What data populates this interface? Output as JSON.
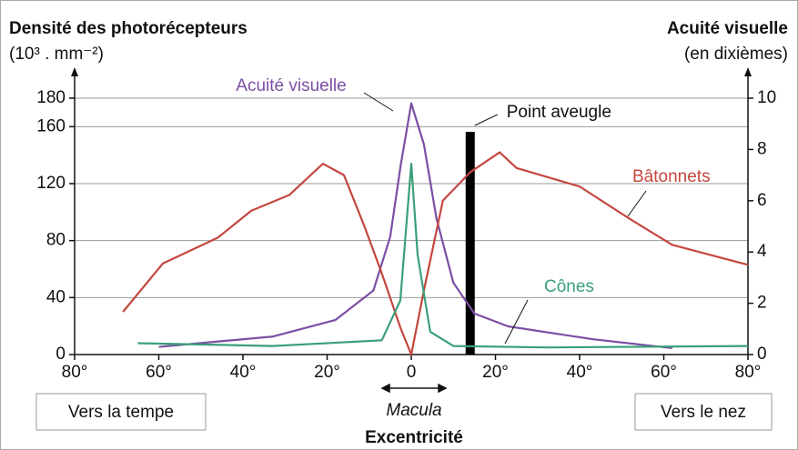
{
  "chart_data": {
    "type": "line",
    "y_title": "Densité des photorécepteurs",
    "y_unit": "(10³ . mm⁻²)",
    "y2_title": "Acuité visuelle",
    "y2_unit": "(en dixièmes)",
    "x_title": "Excentricité",
    "macula": "Macula",
    "left_note": "Vers la tempe",
    "right_note": "Vers le nez",
    "blind_spot": {
      "label": "Point aveugle",
      "x": 14
    },
    "xlim": [
      -80,
      80
    ],
    "xticks": [
      {
        "value": -80,
        "label": "80°"
      },
      {
        "value": -60,
        "label": "60°"
      },
      {
        "value": -40,
        "label": "40°"
      },
      {
        "value": -20,
        "label": "20°"
      },
      0,
      {
        "value": 20,
        "label": "20°"
      },
      {
        "value": 40,
        "label": "40°"
      },
      {
        "value": 60,
        "label": "60°"
      },
      {
        "value": 80,
        "label": "80°"
      }
    ],
    "ylim": [
      0,
      180
    ],
    "yticks": [
      0,
      40,
      80,
      120,
      160,
      180
    ],
    "y2lim": [
      0,
      10
    ],
    "y2ticks": [
      0,
      2,
      4,
      6,
      8,
      10
    ],
    "grid": true,
    "series": [
      {
        "name": "Acuité visuelle",
        "color": "#7b4fa3",
        "axis": "y2",
        "x": [
          -60,
          -33,
          -18,
          -9,
          -5,
          -2.5,
          0,
          3,
          6,
          10,
          15,
          23,
          43,
          62
        ],
        "values": [
          0.3,
          0.7,
          1.35,
          2.5,
          4.6,
          7.4,
          9.8,
          8.2,
          5.3,
          2.8,
          1.6,
          1.1,
          0.6,
          0.25
        ]
      },
      {
        "name": "Bâtonnets",
        "color": "#c4473f",
        "x": [
          -68.5,
          -59,
          -46,
          -38,
          -29,
          -21,
          -16,
          -11,
          -7,
          -2.6,
          0,
          3,
          7.5,
          14,
          21,
          25,
          40,
          51.5,
          62,
          80
        ],
        "values": [
          30,
          64,
          82,
          101,
          112,
          134,
          126,
          89,
          57,
          19,
          0,
          45,
          108,
          128,
          142,
          131,
          118,
          96,
          77,
          63
        ]
      },
      {
        "name": "Cônes",
        "color": "#3a9f78",
        "x": [
          -65,
          -33,
          -7,
          -2.6,
          0,
          1.5,
          4.5,
          10,
          32,
          80
        ],
        "values": [
          8,
          6,
          10,
          38,
          134,
          70,
          16,
          6,
          5,
          6
        ]
      }
    ]
  }
}
